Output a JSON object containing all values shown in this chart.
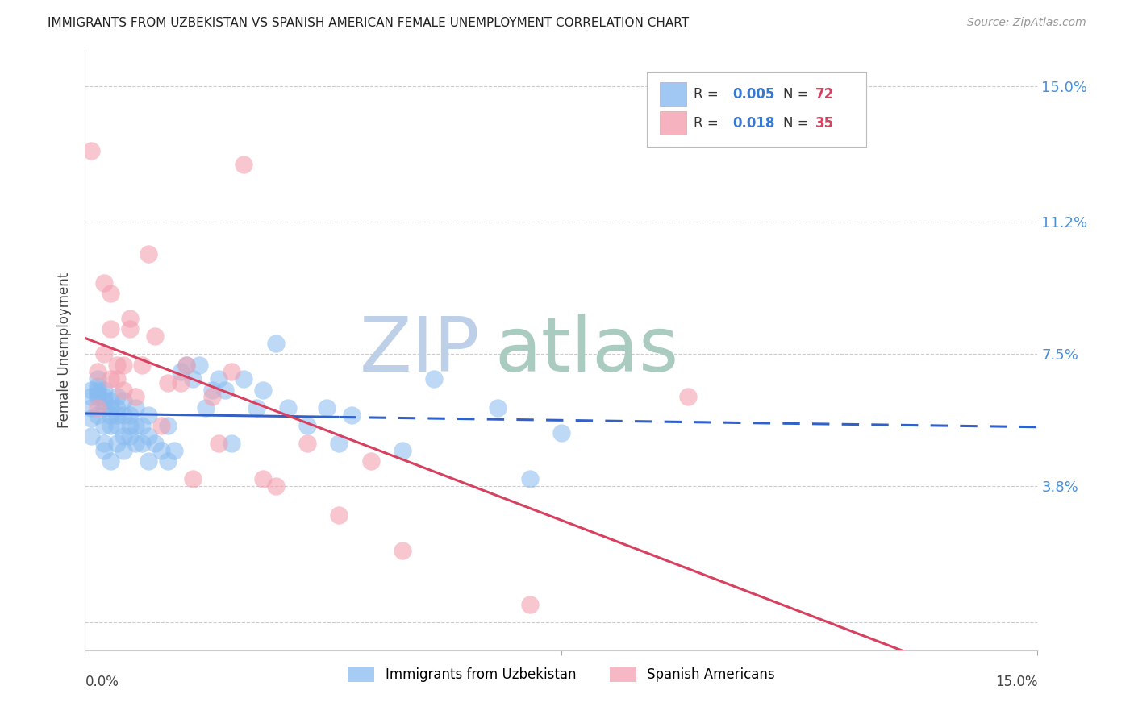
{
  "title": "IMMIGRANTS FROM UZBEKISTAN VS SPANISH AMERICAN FEMALE UNEMPLOYMENT CORRELATION CHART",
  "source": "Source: ZipAtlas.com",
  "ylabel": "Female Unemployment",
  "yticks": [
    0.0,
    0.038,
    0.075,
    0.112,
    0.15
  ],
  "ytick_labels": [
    "",
    "3.8%",
    "7.5%",
    "11.2%",
    "15.0%"
  ],
  "xlim": [
    0.0,
    0.15
  ],
  "ylim": [
    -0.008,
    0.16
  ],
  "color1": "#88BBF0",
  "color2": "#F4A0B0",
  "trend1_color": "#3060C8",
  "trend2_color": "#D84060",
  "r_label_color": "#3878D0",
  "n_label_color": "#D84060",
  "ytick_color": "#4A90D9",
  "watermark_zip_color": "#BDD0E8",
  "watermark_atlas_color": "#AACCC0",
  "series1_label": "Immigrants from Uzbekistan",
  "series2_label": "Spanish Americans",
  "background_color": "#FFFFFF",
  "series1_x": [
    0.001,
    0.001,
    0.001,
    0.001,
    0.001,
    0.002,
    0.002,
    0.002,
    0.002,
    0.002,
    0.002,
    0.003,
    0.003,
    0.003,
    0.003,
    0.003,
    0.003,
    0.003,
    0.004,
    0.004,
    0.004,
    0.004,
    0.004,
    0.005,
    0.005,
    0.005,
    0.005,
    0.005,
    0.006,
    0.006,
    0.006,
    0.006,
    0.007,
    0.007,
    0.007,
    0.008,
    0.008,
    0.008,
    0.009,
    0.009,
    0.01,
    0.01,
    0.01,
    0.011,
    0.012,
    0.013,
    0.013,
    0.014,
    0.015,
    0.016,
    0.017,
    0.018,
    0.019,
    0.02,
    0.021,
    0.022,
    0.023,
    0.025,
    0.027,
    0.028,
    0.03,
    0.032,
    0.035,
    0.038,
    0.04,
    0.042,
    0.05,
    0.055,
    0.065,
    0.07,
    0.075
  ],
  "series1_y": [
    0.06,
    0.063,
    0.065,
    0.057,
    0.052,
    0.063,
    0.064,
    0.065,
    0.066,
    0.068,
    0.058,
    0.06,
    0.062,
    0.063,
    0.065,
    0.055,
    0.05,
    0.048,
    0.058,
    0.06,
    0.062,
    0.055,
    0.045,
    0.058,
    0.06,
    0.063,
    0.055,
    0.05,
    0.052,
    0.058,
    0.062,
    0.048,
    0.055,
    0.058,
    0.052,
    0.05,
    0.055,
    0.06,
    0.055,
    0.05,
    0.052,
    0.058,
    0.045,
    0.05,
    0.048,
    0.045,
    0.055,
    0.048,
    0.07,
    0.072,
    0.068,
    0.072,
    0.06,
    0.065,
    0.068,
    0.065,
    0.05,
    0.068,
    0.06,
    0.065,
    0.078,
    0.06,
    0.055,
    0.06,
    0.05,
    0.058,
    0.048,
    0.068,
    0.06,
    0.04,
    0.053
  ],
  "series2_x": [
    0.001,
    0.002,
    0.002,
    0.003,
    0.003,
    0.004,
    0.004,
    0.004,
    0.005,
    0.005,
    0.006,
    0.006,
    0.007,
    0.007,
    0.008,
    0.009,
    0.01,
    0.011,
    0.012,
    0.013,
    0.015,
    0.016,
    0.017,
    0.02,
    0.021,
    0.023,
    0.025,
    0.028,
    0.03,
    0.035,
    0.04,
    0.045,
    0.05,
    0.07,
    0.095
  ],
  "series2_y": [
    0.132,
    0.07,
    0.06,
    0.095,
    0.075,
    0.092,
    0.082,
    0.068,
    0.068,
    0.072,
    0.072,
    0.065,
    0.082,
    0.085,
    0.063,
    0.072,
    0.103,
    0.08,
    0.055,
    0.067,
    0.067,
    0.072,
    0.04,
    0.063,
    0.05,
    0.07,
    0.128,
    0.04,
    0.038,
    0.05,
    0.03,
    0.045,
    0.02,
    0.005,
    0.063
  ],
  "trend1_x_solid_end": 0.04,
  "trend1_intercept": 0.06,
  "trend1_slope": 0.05,
  "trend2_intercept": 0.064,
  "trend2_slope": 0.1
}
